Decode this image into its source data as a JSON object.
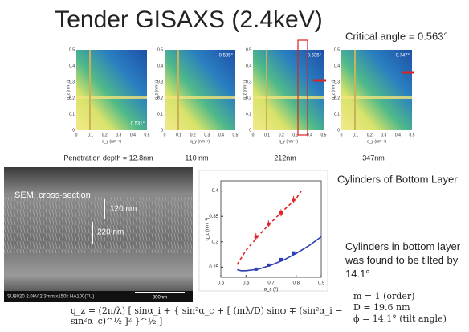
{
  "title": "Tender GISAXS (2.4keV)",
  "critical_angle": "Critical angle = 0.563°",
  "gisaxs": {
    "x_label": "q_y (nm⁻¹)",
    "y_label": "q_z (nm⁻¹)",
    "xticks": [
      0,
      0.1,
      0.2,
      0.3,
      0.4,
      0.5
    ],
    "yticks": [
      0,
      0.1,
      0.2,
      0.3,
      0.4,
      0.5
    ],
    "panels": [
      {
        "angle": "0.531°",
        "caption": "Penetration depth = 12.8nm"
      },
      {
        "angle": "0.585°",
        "caption": "110 nm"
      },
      {
        "angle": "0.635°",
        "caption": "212nm"
      },
      {
        "angle": "0.747°",
        "caption": "347nm"
      }
    ]
  },
  "sem": {
    "label": "SEM: cross-section",
    "top_layer": "120 nm",
    "bottom_layer": "220 nm",
    "footer": "SU8020 2.0kV 2.3mm x150k HA100(TU)",
    "scale": "300nm"
  },
  "plot": {
    "type": "scatter",
    "x_label": "α_c (°)",
    "y_label": "q_z (nm⁻¹)",
    "xlim": [
      0.5,
      0.9
    ],
    "ylim": [
      0.23,
      0.42
    ],
    "xticks": [
      0.5,
      0.6,
      0.7,
      0.8,
      0.9
    ],
    "yticks": [
      0.25,
      0.3,
      0.35,
      0.4
    ],
    "points": [
      {
        "color": "#e0242a",
        "x": [
          0.64,
          0.69,
          0.74,
          0.79
        ],
        "values": [
          0.31,
          0.335,
          0.357,
          0.383
        ],
        "errors": [
          0.007,
          0.007,
          0.007,
          0.007
        ]
      },
      {
        "color": "#2a3fb5",
        "x": [
          0.64,
          0.69,
          0.74,
          0.79
        ],
        "values": [
          0.246,
          0.254,
          0.265,
          0.278
        ]
      }
    ],
    "curves": [
      {
        "color": "#e0242a",
        "dashed": true,
        "x": [
          0.565,
          0.6,
          0.65,
          0.7,
          0.75,
          0.8,
          0.82
        ],
        "values": [
          0.255,
          0.283,
          0.312,
          0.338,
          0.362,
          0.385,
          0.4
        ]
      },
      {
        "color": "#2a3fb5",
        "dashed": false,
        "x": [
          0.565,
          0.58,
          0.6,
          0.65,
          0.7,
          0.75,
          0.8,
          0.85,
          0.9
        ],
        "values": [
          0.245,
          0.243,
          0.243,
          0.246,
          0.254,
          0.264,
          0.277,
          0.292,
          0.31
        ]
      }
    ]
  },
  "cylinders_heading": "Cylinders of Bottom Layer",
  "tilt_note": "Cylinders in bottom layer was found to be tilted by 14.1°",
  "formula": "q_z = (2π/λ) [ sinα_i + { sin²α_c + [ (mλ/D) sinϕ ∓ (sin²α_i − sin²α_c)^½ ]² }^½ ]",
  "params": [
    "m = 1 (order)",
    "D = 19.6 nm",
    "ϕ = 14.1° (tilt angle)"
  ]
}
